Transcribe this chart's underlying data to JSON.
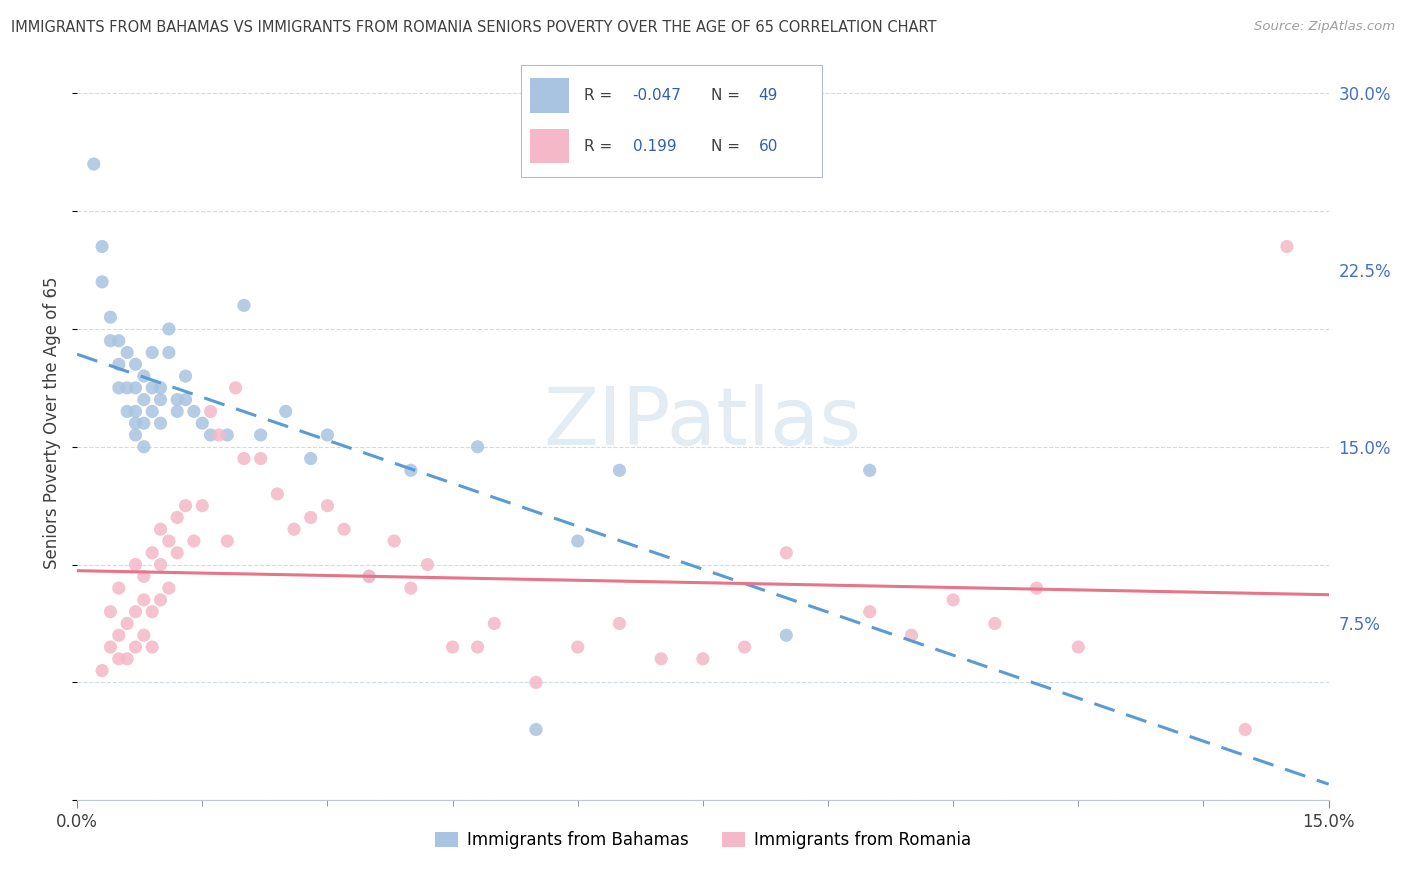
{
  "title": "IMMIGRANTS FROM BAHAMAS VS IMMIGRANTS FROM ROMANIA SENIORS POVERTY OVER THE AGE OF 65 CORRELATION CHART",
  "source": "Source: ZipAtlas.com",
  "ylabel": "Seniors Poverty Over the Age of 65",
  "xlim": [
    0.0,
    0.15
  ],
  "ylim": [
    0.0,
    0.32
  ],
  "xtick_positions": [
    0.0,
    0.15
  ],
  "xtick_labels": [
    "0.0%",
    "15.0%"
  ],
  "ytick_positions": [
    0.0,
    0.075,
    0.15,
    0.225,
    0.3
  ],
  "ytick_labels_right": [
    "",
    "7.5%",
    "15.0%",
    "22.5%",
    "30.0%"
  ],
  "r_bahamas": -0.047,
  "n_bahamas": 49,
  "r_romania": 0.199,
  "n_romania": 60,
  "color_bahamas": "#a8c4e0",
  "color_romania": "#f4b8c8",
  "trend_color_bahamas": "#5b9bd5",
  "trend_color_romania": "#e8748a",
  "legend_label_bahamas": "Immigrants from Bahamas",
  "legend_label_romania": "Immigrants from Romania",
  "watermark_text": "ZIPatlas",
  "background_color": "#ffffff",
  "grid_color": "#c8d8e8",
  "title_color": "#404040",
  "bahamas_x": [
    0.002,
    0.003,
    0.003,
    0.004,
    0.004,
    0.005,
    0.005,
    0.005,
    0.006,
    0.006,
    0.006,
    0.007,
    0.007,
    0.007,
    0.007,
    0.007,
    0.008,
    0.008,
    0.008,
    0.008,
    0.009,
    0.009,
    0.009,
    0.01,
    0.01,
    0.01,
    0.011,
    0.011,
    0.012,
    0.012,
    0.013,
    0.013,
    0.014,
    0.015,
    0.016,
    0.018,
    0.02,
    0.022,
    0.025,
    0.028,
    0.03,
    0.035,
    0.04,
    0.048,
    0.055,
    0.06,
    0.065,
    0.085,
    0.095
  ],
  "bahamas_y": [
    0.27,
    0.235,
    0.22,
    0.205,
    0.195,
    0.195,
    0.185,
    0.175,
    0.19,
    0.175,
    0.165,
    0.185,
    0.175,
    0.165,
    0.16,
    0.155,
    0.18,
    0.17,
    0.16,
    0.15,
    0.19,
    0.175,
    0.165,
    0.175,
    0.17,
    0.16,
    0.2,
    0.19,
    0.17,
    0.165,
    0.18,
    0.17,
    0.165,
    0.16,
    0.155,
    0.155,
    0.21,
    0.155,
    0.165,
    0.145,
    0.155,
    0.095,
    0.14,
    0.15,
    0.03,
    0.11,
    0.14,
    0.07,
    0.14
  ],
  "romania_x": [
    0.003,
    0.004,
    0.004,
    0.005,
    0.005,
    0.005,
    0.006,
    0.006,
    0.007,
    0.007,
    0.007,
    0.008,
    0.008,
    0.008,
    0.009,
    0.009,
    0.009,
    0.01,
    0.01,
    0.01,
    0.011,
    0.011,
    0.012,
    0.012,
    0.013,
    0.014,
    0.015,
    0.016,
    0.017,
    0.018,
    0.019,
    0.02,
    0.022,
    0.024,
    0.026,
    0.028,
    0.03,
    0.032,
    0.035,
    0.038,
    0.04,
    0.042,
    0.045,
    0.048,
    0.05,
    0.055,
    0.06,
    0.065,
    0.07,
    0.075,
    0.08,
    0.085,
    0.095,
    0.1,
    0.105,
    0.11,
    0.115,
    0.12,
    0.14,
    0.145
  ],
  "romania_y": [
    0.055,
    0.065,
    0.08,
    0.06,
    0.07,
    0.09,
    0.06,
    0.075,
    0.065,
    0.08,
    0.1,
    0.07,
    0.085,
    0.095,
    0.065,
    0.08,
    0.105,
    0.085,
    0.1,
    0.115,
    0.09,
    0.11,
    0.105,
    0.12,
    0.125,
    0.11,
    0.125,
    0.165,
    0.155,
    0.11,
    0.175,
    0.145,
    0.145,
    0.13,
    0.115,
    0.12,
    0.125,
    0.115,
    0.095,
    0.11,
    0.09,
    0.1,
    0.065,
    0.065,
    0.075,
    0.05,
    0.065,
    0.075,
    0.06,
    0.06,
    0.065,
    0.105,
    0.08,
    0.07,
    0.085,
    0.075,
    0.09,
    0.065,
    0.03,
    0.235
  ]
}
